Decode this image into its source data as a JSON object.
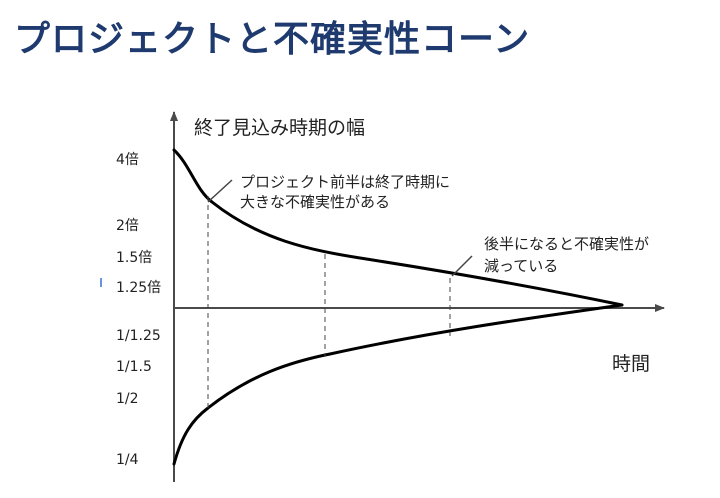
{
  "title": "プロジェクトと不確実性コーン",
  "chart": {
    "y_axis_title": "終了見込み時期の幅",
    "x_axis_title": "時間",
    "ticks": [
      "4倍",
      "2倍",
      "1.5倍",
      "1.25倍",
      "1/1.25",
      "1/1.5",
      "1/2",
      "1/4"
    ],
    "annotation_early": [
      "プロジェクト前半は終了時期に",
      "大きな不確実性がある"
    ],
    "annotation_late": [
      "後半になると不確実性が",
      "減っている"
    ]
  },
  "colors": {
    "title": "#1f3a6e",
    "axis": "#4a4a4a",
    "curve": "#000000",
    "guide": "#444444"
  }
}
